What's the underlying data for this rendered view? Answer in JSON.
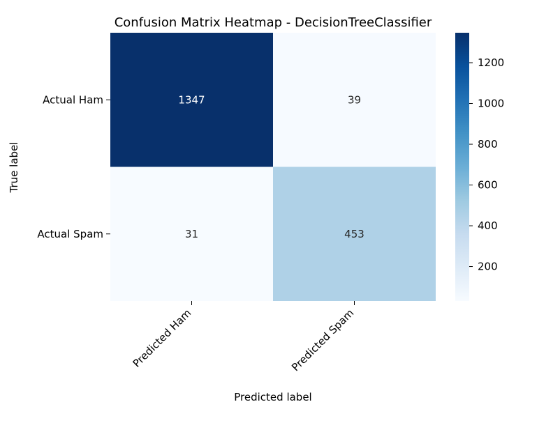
{
  "chart_data": {
    "type": "heatmap",
    "title": "Confusion Matrix Heatmap - DecisionTreeClassifier",
    "xlabel": "Predicted label",
    "ylabel": "True label",
    "x_categories": [
      "Predicted Ham",
      "Predicted Spam"
    ],
    "y_categories": [
      "Actual Ham",
      "Actual Spam"
    ],
    "values": [
      [
        1347,
        39
      ],
      [
        31,
        453
      ]
    ],
    "colormap": "Blues",
    "color_range": [
      31,
      1347
    ],
    "colorbar": {
      "ticks": [
        200,
        400,
        600,
        800,
        1000,
        1200
      ]
    },
    "colors": {
      "cmap_low": "#f7fbff",
      "cmap_mid": "#6baed6",
      "cmap_high": "#08306b",
      "text_dark": "#262626",
      "text_light": "#ffffff"
    }
  }
}
